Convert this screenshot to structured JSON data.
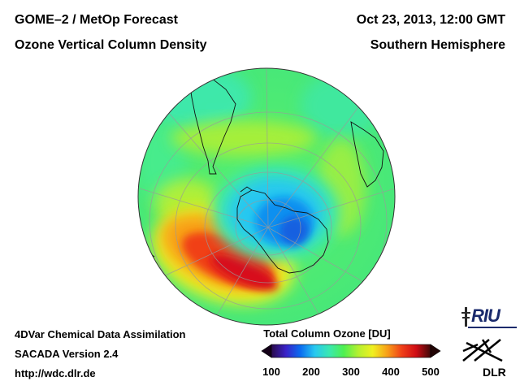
{
  "header": {
    "title_line1": "GOME–2 / MetOp Forecast",
    "title_line2": "Ozone Vertical Column Density",
    "date": "Oct 23, 2013, 12:00 GMT",
    "region": "Southern Hemisphere"
  },
  "footer": {
    "line1": "4DVar Chemical Data Assimilation",
    "line2": "SACADA Version 2.4",
    "line3": "http://wdc.dlr.de"
  },
  "colorbar": {
    "title": "Total Column Ozone [DU]",
    "ticks": [
      "100",
      "200",
      "300",
      "400",
      "500"
    ],
    "min": 100,
    "max": 500,
    "colors": [
      "#2a0a4a",
      "#3a22c8",
      "#0a6cf0",
      "#28c8f0",
      "#3ae8b0",
      "#4ef050",
      "#b4f030",
      "#f0f020",
      "#f8a018",
      "#f04018",
      "#d00c14",
      "#400808"
    ]
  },
  "map": {
    "projection": "orthographic-south-pole",
    "ozone_field": {
      "hole_min_du": 150,
      "background_du": 300,
      "collar_max_du": 470
    }
  },
  "logos": {
    "riu": "RIU",
    "dlr": "DLR"
  }
}
